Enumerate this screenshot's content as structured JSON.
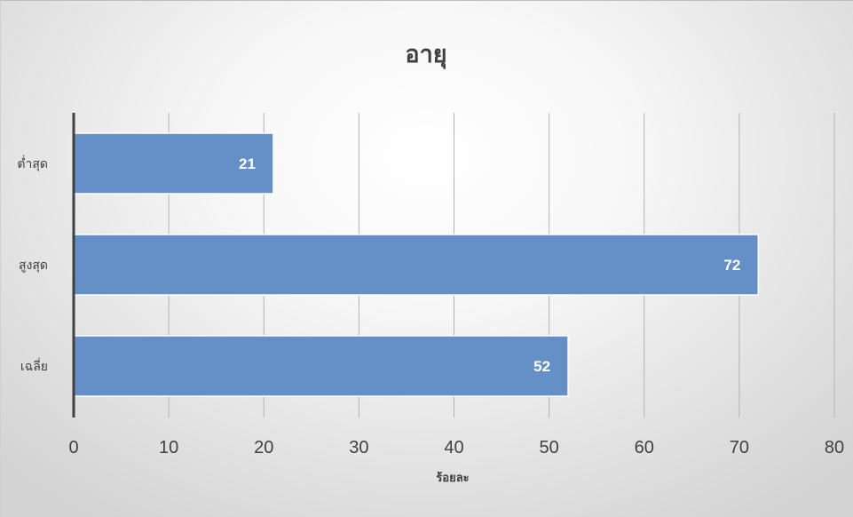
{
  "chart_data": {
    "type": "bar",
    "orientation": "horizontal",
    "title": "อายุ",
    "xlabel": "ร้อยละ",
    "ylabel": "",
    "categories": [
      "ต่ำสุด",
      "สูงสุด",
      "เฉลี่ย"
    ],
    "values": [
      21,
      72,
      52
    ],
    "data_labels": [
      "21",
      "72",
      "52"
    ],
    "xlim": [
      0,
      80
    ],
    "xticks": [
      0,
      10,
      20,
      30,
      40,
      50,
      60,
      70,
      80
    ],
    "xtick_labels": [
      "0",
      "10",
      "20",
      "30",
      "40",
      "50",
      "60",
      "70",
      "80"
    ],
    "grid": true,
    "legend": "none",
    "bar_color": "#6590c7",
    "bar_edge_color": "#ffffff",
    "gridline_color": "#b3b3b3",
    "axis_color": "#404040",
    "text_color": "#404040"
  }
}
